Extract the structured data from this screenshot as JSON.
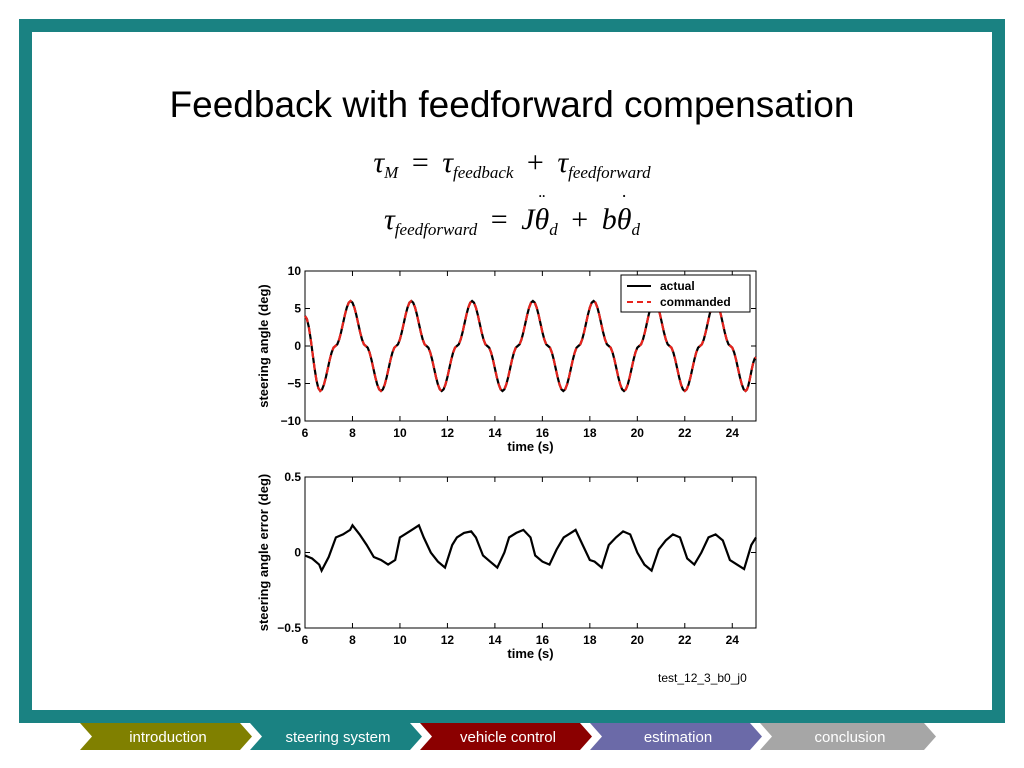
{
  "slide": {
    "title": "Feedback with feedforward compensation",
    "caption": "test_12_3_b0_j0",
    "colors": {
      "frame": "#1a8282"
    }
  },
  "equations": {
    "eq1": {
      "lhs": "τ",
      "lhs_sub": "M",
      "eq": "=",
      "t1": "τ",
      "t1_sub": "feedback",
      "plus": "+",
      "t2": "τ",
      "t2_sub": "feedforward"
    },
    "eq2": {
      "lhs": "τ",
      "lhs_sub": "feedforward",
      "eq": "=",
      "J": "J",
      "theta1": "θ",
      "theta1_sub": "d",
      "plus": "+",
      "b": "b",
      "theta2": "θ",
      "theta2_sub": "d"
    }
  },
  "nav": {
    "tabs": [
      {
        "label": "introduction",
        "color": "#808000"
      },
      {
        "label": "steering system",
        "color": "#1a8282"
      },
      {
        "label": "vehicle control",
        "color": "#8b0000"
      },
      {
        "label": "estimation",
        "color": "#6b6aa8"
      },
      {
        "label": "conclusion",
        "color": "#a6a6a6"
      }
    ]
  },
  "chart_data": [
    {
      "type": "line",
      "xlabel": "time (s)",
      "ylabel": "steering angle (deg)",
      "xlim": [
        6,
        25
      ],
      "ylim": [
        -10,
        10
      ],
      "xticks": [
        6,
        8,
        10,
        12,
        14,
        16,
        18,
        20,
        22,
        24
      ],
      "yticks": [
        10,
        5,
        0,
        -5,
        -10
      ],
      "ytick_labels": [
        "10",
        "5",
        "0",
        "−5",
        "−10"
      ],
      "legend": "top-right",
      "series": [
        {
          "name": "actual",
          "color": "#000000",
          "style": "solid",
          "x": [
            6,
            6.64,
            7.28,
            7.92,
            8.56,
            9.2,
            9.84,
            10.48,
            11.12,
            11.76,
            12.4,
            13.04,
            13.68,
            14.32,
            14.96,
            15.6,
            16.24,
            16.88,
            17.52,
            18.16,
            18.8,
            19.44,
            20.08,
            20.72,
            21.36,
            22,
            22.64,
            23.28,
            23.92,
            24.56,
            25
          ],
          "y": [
            4,
            -6,
            0,
            6,
            0,
            -6,
            0,
            6,
            0,
            -6,
            0,
            6,
            0,
            -6,
            0,
            6,
            0,
            -6,
            0,
            6,
            0,
            -6,
            0,
            6,
            0,
            -6,
            0,
            6,
            0,
            -6,
            -1.5
          ]
        },
        {
          "name": "commanded",
          "color": "#e8231c",
          "style": "dashed",
          "x": [
            6,
            6.64,
            7.28,
            7.92,
            8.56,
            9.2,
            9.84,
            10.48,
            11.12,
            11.76,
            12.4,
            13.04,
            13.68,
            14.32,
            14.96,
            15.6,
            16.24,
            16.88,
            17.52,
            18.16,
            18.8,
            19.44,
            20.08,
            20.72,
            21.36,
            22,
            22.64,
            23.28,
            23.92,
            24.56,
            25
          ],
          "y": [
            4,
            -6,
            0,
            6,
            0,
            -6,
            0,
            6,
            0,
            -6,
            0,
            6,
            0,
            -6,
            0,
            6,
            0,
            -6,
            0,
            6,
            0,
            -6,
            0,
            6,
            0,
            -6,
            0,
            6,
            0,
            -6,
            -1.5
          ]
        }
      ]
    },
    {
      "type": "line",
      "xlabel": "time (s)",
      "ylabel": "steering angle error (deg)",
      "xlim": [
        6,
        25
      ],
      "ylim": [
        -0.5,
        0.5
      ],
      "xticks": [
        6,
        8,
        10,
        12,
        14,
        16,
        18,
        20,
        22,
        24
      ],
      "yticks": [
        0.5,
        0,
        -0.5
      ],
      "ytick_labels": [
        "0.5",
        "0",
        "−0.5"
      ],
      "series": [
        {
          "name": "",
          "color": "#000000",
          "style": "solid",
          "x": [
            6,
            6.3,
            6.6,
            6.7,
            7.0,
            7.3,
            7.6,
            7.9,
            8.0,
            8.3,
            8.6,
            8.9,
            9.2,
            9.5,
            9.8,
            10.0,
            10.2,
            10.5,
            10.8,
            11.0,
            11.3,
            11.6,
            11.9,
            12.2,
            12.4,
            12.7,
            13.0,
            13.2,
            13.5,
            13.8,
            14.1,
            14.4,
            14.6,
            14.9,
            15.2,
            15.5,
            15.7,
            16.0,
            16.3,
            16.6,
            16.9,
            17.1,
            17.4,
            17.7,
            18.0,
            18.2,
            18.5,
            18.8,
            19.1,
            19.4,
            19.7,
            20.0,
            20.3,
            20.6,
            20.9,
            21.2,
            21.5,
            21.8,
            22.1,
            22.4,
            22.7,
            23.0,
            23.3,
            23.6,
            23.9,
            24.2,
            24.5,
            24.8,
            25
          ],
          "y": [
            -0.02,
            -0.04,
            -0.08,
            -0.12,
            -0.03,
            0.1,
            0.12,
            0.15,
            0.18,
            0.12,
            0.05,
            -0.03,
            -0.05,
            -0.08,
            -0.05,
            0.1,
            0.12,
            0.15,
            0.18,
            0.1,
            0.0,
            -0.06,
            -0.1,
            0.05,
            0.1,
            0.13,
            0.14,
            0.1,
            -0.02,
            -0.06,
            -0.1,
            0.0,
            0.1,
            0.13,
            0.15,
            0.1,
            -0.02,
            -0.06,
            -0.08,
            0.02,
            0.1,
            0.12,
            0.15,
            0.05,
            -0.05,
            -0.06,
            -0.1,
            0.05,
            0.1,
            0.14,
            0.12,
            0.0,
            -0.08,
            -0.12,
            0.02,
            0.08,
            0.12,
            0.1,
            -0.04,
            -0.08,
            0.0,
            0.1,
            0.12,
            0.08,
            -0.05,
            -0.08,
            -0.11,
            0.05,
            0.1
          ]
        }
      ]
    }
  ]
}
